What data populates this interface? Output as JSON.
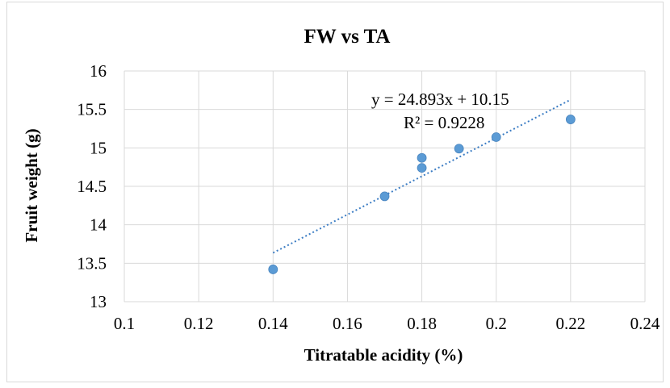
{
  "chart_data": {
    "type": "scatter",
    "title": "FW vs TA",
    "xlabel": "Titratable acidity (%)",
    "ylabel": "Fruit weight (g)",
    "xlim": [
      0.1,
      0.24
    ],
    "ylim": [
      13,
      16
    ],
    "x_ticks": [
      "0.1",
      "0.12",
      "0.14",
      "0.16",
      "0.18",
      "0.2",
      "0.22",
      "0.24"
    ],
    "y_ticks": [
      "13",
      "13.5",
      "14",
      "14.5",
      "15",
      "15.5",
      "16"
    ],
    "grid": true,
    "points": [
      {
        "x": 0.14,
        "y": 13.42
      },
      {
        "x": 0.17,
        "y": 14.37
      },
      {
        "x": 0.18,
        "y": 14.74
      },
      {
        "x": 0.18,
        "y": 14.87
      },
      {
        "x": 0.19,
        "y": 14.99
      },
      {
        "x": 0.2,
        "y": 15.14
      },
      {
        "x": 0.22,
        "y": 15.37
      }
    ],
    "trendline": {
      "type": "linear",
      "slope": 24.893,
      "intercept": 10.15,
      "x_range": [
        0.14,
        0.22
      ],
      "equation_label": "y = 24.893x + 10.15",
      "r2_label": "R² = 0.9228"
    },
    "colors": {
      "points": "#5b9bd5",
      "trendline": "#3c7dc4",
      "grid": "#d9d9d9"
    }
  }
}
